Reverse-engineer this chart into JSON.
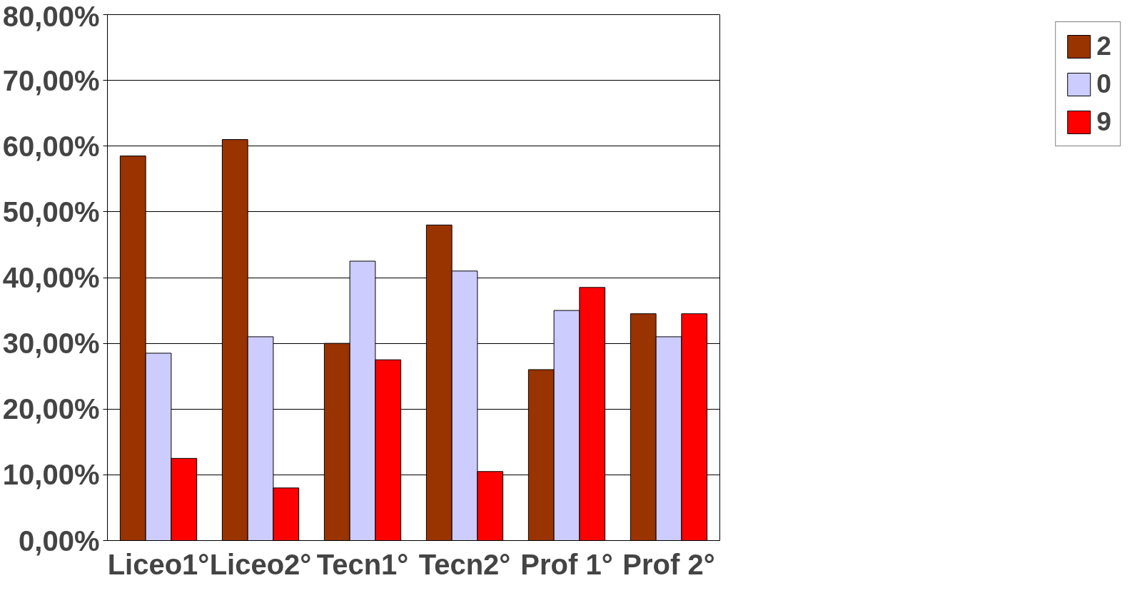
{
  "chart_data": {
    "type": "bar",
    "categories": [
      "Liceo1°",
      "Liceo2°",
      "Tecn1°",
      "Tecn2°",
      "Prof 1°",
      "Prof 2°"
    ],
    "series": [
      {
        "name": "2",
        "color": "#993300",
        "values": [
          58.5,
          61,
          30,
          48,
          26,
          34.5
        ]
      },
      {
        "name": "0",
        "color": "#ccccff",
        "values": [
          28.5,
          31,
          42.5,
          41,
          35,
          31
        ]
      },
      {
        "name": "9",
        "color": "#ff0000",
        "values": [
          12.5,
          8,
          27.5,
          10.5,
          38.5,
          34.5
        ]
      }
    ],
    "ylim": [
      0,
      80
    ],
    "yticks": [
      {
        "value": 0,
        "label": "0,00%"
      },
      {
        "value": 10,
        "label": "10,00%"
      },
      {
        "value": 20,
        "label": "20,00%"
      },
      {
        "value": 30,
        "label": "30,00%"
      },
      {
        "value": 40,
        "label": "40,00%"
      },
      {
        "value": 50,
        "label": "50,00%"
      },
      {
        "value": 60,
        "label": "60,00%"
      },
      {
        "value": 70,
        "label": "70,00%"
      },
      {
        "value": 80,
        "label": "80,00%"
      }
    ],
    "grid": "y",
    "legend": "right"
  }
}
